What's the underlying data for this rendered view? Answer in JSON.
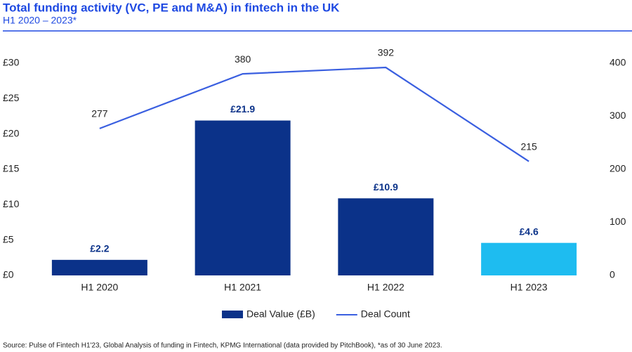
{
  "chart_data": {
    "type": "combo",
    "title": "Total funding activity (VC, PE and M&A) in fintech in the UK",
    "subtitle": "H1 2020 – 2023*",
    "categories": [
      "H1 2020",
      "H1 2021",
      "H1 2022",
      "H1 2023"
    ],
    "series": [
      {
        "name": "Deal Value (£B)",
        "type": "bar",
        "color": "#0b3289",
        "colors": [
          "#0b3289",
          "#0b3289",
          "#0b3289",
          "#1ebcf0"
        ],
        "values": [
          2.2,
          21.9,
          10.9,
          4.6
        ],
        "value_labels": [
          "£2.2",
          "£21.9",
          "£10.9",
          "£4.6"
        ]
      },
      {
        "name": "Deal Count",
        "type": "line",
        "axis": "y2",
        "color": "#3a5fe0",
        "values": [
          277,
          380,
          392,
          215
        ]
      }
    ],
    "ylim": [
      0,
      30
    ],
    "yticks": [
      {
        "value": 0,
        "label": "£0"
      },
      {
        "value": 5,
        "label": "£5"
      },
      {
        "value": 10,
        "label": "£10"
      },
      {
        "value": 15,
        "label": "£15"
      },
      {
        "value": 20,
        "label": "£20"
      },
      {
        "value": 25,
        "label": "£25"
      },
      {
        "value": 30,
        "label": "£30"
      }
    ],
    "y2lim": [
      0,
      400
    ],
    "y2ticks": [
      0,
      100,
      200,
      300,
      400
    ],
    "legend": "bottom",
    "source": "Source: Pulse of Fintech H1'23, Global Analysis of funding in Fintech, KPMG International (data provided by PitchBook), *as of 30 June 2023."
  }
}
